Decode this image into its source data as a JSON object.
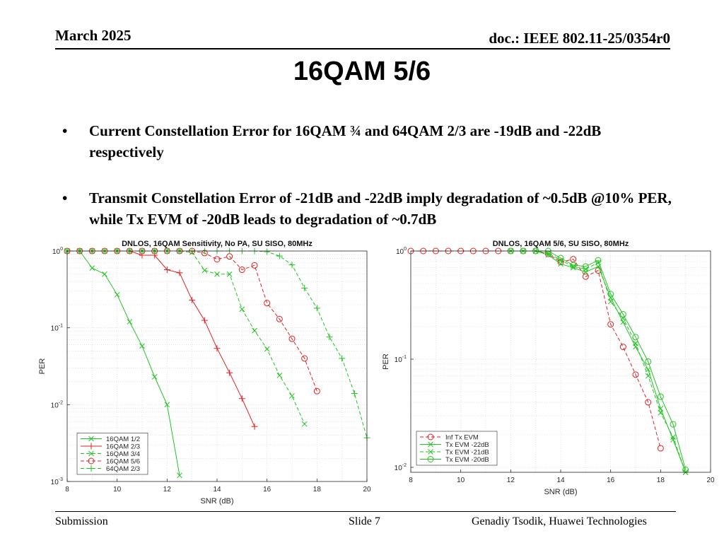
{
  "header": {
    "date": "March 2025",
    "doc": "doc.: IEEE 802.11-25/0354r0"
  },
  "slide_title": "16QAM 5/6",
  "bullets": [
    {
      "marker": "•",
      "text": "Current Constellation Error for 16QAM ¾ and 64QAM 2/3 are -19dB and -22dB respectively"
    },
    {
      "marker": "•",
      "text": "Transmit Constellation Error of -21dB and -22dB imply degradation of ~0.5dB @10% PER, while Tx EVM of -20dB leads to degradation of ~0.7dB"
    }
  ],
  "footer": {
    "left": "Submission",
    "center": "Slide 7",
    "right": "Genadiy Tsodik, Huawei Technologies"
  },
  "chart_data": [
    {
      "type": "line",
      "title": "DNLOS, 16QAM Sensitivity, No PA, SU SISO, 80MHz",
      "xlabel": "SNR (dB)",
      "ylabel": "PER",
      "xlim": [
        8,
        20
      ],
      "ylim": [
        0.001,
        1
      ],
      "yscale": "log",
      "xticks": [
        "8",
        "10",
        "12",
        "14",
        "16",
        "18",
        "20"
      ],
      "yticks": [
        {
          "value": 1,
          "base": "10",
          "exp": "0"
        },
        {
          "value": 0.1,
          "base": "10",
          "exp": "-1"
        },
        {
          "value": 0.01,
          "base": "10",
          "exp": "-2"
        },
        {
          "value": 0.001,
          "base": "10",
          "exp": "-3"
        }
      ],
      "grid": true,
      "legend_position": "bottom-left",
      "series": [
        {
          "name": "16QAM 1/2",
          "color": "#22c422",
          "dash": "solid",
          "marker": "x",
          "x": [
            8,
            8.5,
            9,
            9.5,
            10,
            10.5,
            11,
            11.5,
            12,
            12.5
          ],
          "y": [
            1,
            1,
            0.6,
            0.5,
            0.27,
            0.12,
            0.058,
            0.023,
            0.01,
            0.0012
          ]
        },
        {
          "name": "16QAM 2/3",
          "color": "#e02020",
          "dash": "solid",
          "marker": "plus",
          "x": [
            8,
            8.5,
            9,
            9.5,
            10,
            10.5,
            11,
            11.5,
            12,
            12.5,
            13,
            13.5,
            14,
            14.5,
            15,
            15.5
          ],
          "y": [
            1,
            1,
            1,
            1,
            1,
            1,
            0.88,
            0.88,
            0.57,
            0.52,
            0.23,
            0.125,
            0.054,
            0.026,
            0.012,
            0.0052
          ]
        },
        {
          "name": "16QAM 3/4",
          "color": "#22c422",
          "dash": "dashed",
          "marker": "x",
          "x": [
            8,
            8.5,
            9,
            9.5,
            10,
            10.5,
            11,
            11.5,
            12,
            12.5,
            13,
            13.5,
            14,
            14.5,
            15,
            15.5,
            16,
            16.5,
            17,
            17.5
          ],
          "y": [
            1,
            1,
            1,
            1,
            1,
            1,
            1,
            1,
            1,
            1,
            0.96,
            0.56,
            0.5,
            0.5,
            0.175,
            0.092,
            0.053,
            0.024,
            0.013,
            0.0056
          ]
        },
        {
          "name": "16QAM 5/6",
          "color": "#e02020",
          "dash": "dashed",
          "marker": "circle",
          "x": [
            8,
            8.5,
            9,
            9.5,
            10,
            10.5,
            11,
            11.5,
            12,
            12.5,
            13,
            13.5,
            14,
            14.5,
            15,
            15.5,
            16,
            16.5,
            17,
            17.5,
            18
          ],
          "y": [
            1,
            1,
            1,
            1,
            1,
            1,
            1,
            1,
            1,
            1,
            1,
            0.94,
            0.78,
            0.85,
            0.57,
            0.65,
            0.21,
            0.13,
            0.072,
            0.04,
            0.015
          ]
        },
        {
          "name": "64QAM 2/3",
          "color": "#22c422",
          "dash": "dashed",
          "marker": "plus",
          "x": [
            8,
            8.5,
            9,
            9.5,
            10,
            10.5,
            11,
            11.5,
            12,
            12.5,
            13,
            13.5,
            14,
            14.5,
            15,
            15.5,
            16,
            16.5,
            17,
            17.5,
            18,
            18.5,
            19,
            19.5,
            20
          ],
          "y": [
            1,
            1,
            1,
            1,
            1,
            1,
            1,
            1,
            1,
            1,
            1,
            1,
            1,
            1,
            1,
            1,
            0.98,
            0.86,
            0.66,
            0.33,
            0.18,
            0.076,
            0.04,
            0.014,
            0.0037
          ]
        }
      ]
    },
    {
      "type": "line",
      "title": "DNLOS, 16QAM 5/6, SU SISO, 80MHz",
      "xlabel": "SNR (dB)",
      "ylabel": "PER",
      "xlim": [
        8,
        20
      ],
      "ylim": [
        0.009,
        1
      ],
      "yscale": "log",
      "xticks": [
        "8",
        "10",
        "12",
        "14",
        "16",
        "18",
        "20"
      ],
      "yticks": [
        {
          "value": 1,
          "base": "10",
          "exp": "0"
        },
        {
          "value": 0.1,
          "base": "10",
          "exp": "-1"
        },
        {
          "value": 0.01,
          "base": "10",
          "exp": "-2"
        }
      ],
      "grid": true,
      "legend_position": "bottom-left",
      "series": [
        {
          "name": "Inf Tx EVM",
          "color": "#e02020",
          "dash": "dashed",
          "marker": "circle",
          "x": [
            8,
            8.5,
            9,
            9.5,
            10,
            10.5,
            11,
            11.5,
            12,
            12.5,
            13,
            13.5,
            14,
            14.5,
            15,
            15.5,
            16,
            16.5,
            17,
            17.5,
            18
          ],
          "y": [
            1,
            1,
            1,
            1,
            1,
            1,
            1,
            1,
            1,
            1,
            1,
            0.94,
            0.79,
            0.84,
            0.58,
            0.66,
            0.21,
            0.13,
            0.072,
            0.04,
            0.015
          ]
        },
        {
          "name": "Tx EVM -22dB",
          "color": "#22c422",
          "dash": "solid",
          "marker": "x",
          "x": [
            12,
            12.5,
            13,
            13.5,
            14,
            14.5,
            15,
            15.5,
            16,
            16.5,
            17,
            17.5,
            18,
            18.5,
            19
          ],
          "y": [
            1,
            1,
            1,
            0.92,
            0.76,
            0.7,
            0.64,
            0.72,
            0.37,
            0.22,
            0.13,
            0.08,
            0.035,
            0.018,
            0.009
          ]
        },
        {
          "name": "Tx EVM -21dB",
          "color": "#22c422",
          "dash": "dashed",
          "marker": "x",
          "x": [
            12,
            12.5,
            13,
            13.5,
            14,
            14.5,
            15,
            15.5,
            16,
            16.5,
            17,
            17.5,
            18,
            18.5,
            19
          ],
          "y": [
            1,
            1,
            1,
            0.96,
            0.82,
            0.72,
            0.68,
            0.78,
            0.34,
            0.24,
            0.14,
            0.07,
            0.032,
            0.019,
            0.009
          ]
        },
        {
          "name": "Tx EVM -20dB",
          "color": "#22c422",
          "dash": "solid",
          "marker": "circle",
          "x": [
            12,
            12.5,
            13,
            13.5,
            14,
            14.5,
            15,
            15.5,
            16,
            16.5,
            17,
            17.5,
            18,
            18.5,
            19
          ],
          "y": [
            1,
            1,
            1,
            1,
            0.86,
            0.74,
            0.72,
            0.82,
            0.4,
            0.26,
            0.16,
            0.095,
            0.045,
            0.025,
            0.0095
          ]
        }
      ]
    }
  ]
}
